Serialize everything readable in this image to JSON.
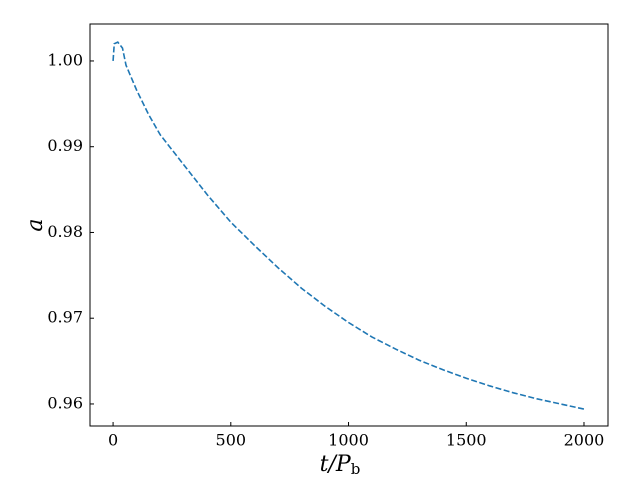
{
  "chart_data": {
    "type": "line",
    "xlabel": "t/P",
    "xlabel_subscript": "b",
    "ylabel": "a",
    "x": [
      0,
      5,
      20,
      40,
      55,
      100,
      150,
      200,
      300,
      400,
      500,
      600,
      700,
      800,
      900,
      1000,
      1100,
      1200,
      1300,
      1400,
      1500,
      1600,
      1700,
      1800,
      1900,
      2000
    ],
    "series": [
      {
        "name": "a",
        "color": "#1f77b4",
        "values": [
          1.0,
          1.002,
          1.0022,
          1.0015,
          0.9995,
          0.9966,
          0.9938,
          0.9914,
          0.9879,
          0.9844,
          0.9812,
          0.9785,
          0.9759,
          0.9735,
          0.9714,
          0.9695,
          0.9678,
          0.9664,
          0.9651,
          0.964,
          0.963,
          0.9621,
          0.9613,
          0.9606,
          0.96,
          0.9594
        ]
      }
    ],
    "xlim": [
      -98,
      2102
    ],
    "xticks": [
      0,
      500,
      1000,
      1500,
      2000
    ],
    "ylim": [
      0.95743,
      1.00431
    ],
    "yticks": [
      {
        "value": 1.0,
        "label": "1.00"
      },
      0.99,
      0.98,
      0.97,
      0.96
    ],
    "grid": false,
    "dashed": true
  }
}
